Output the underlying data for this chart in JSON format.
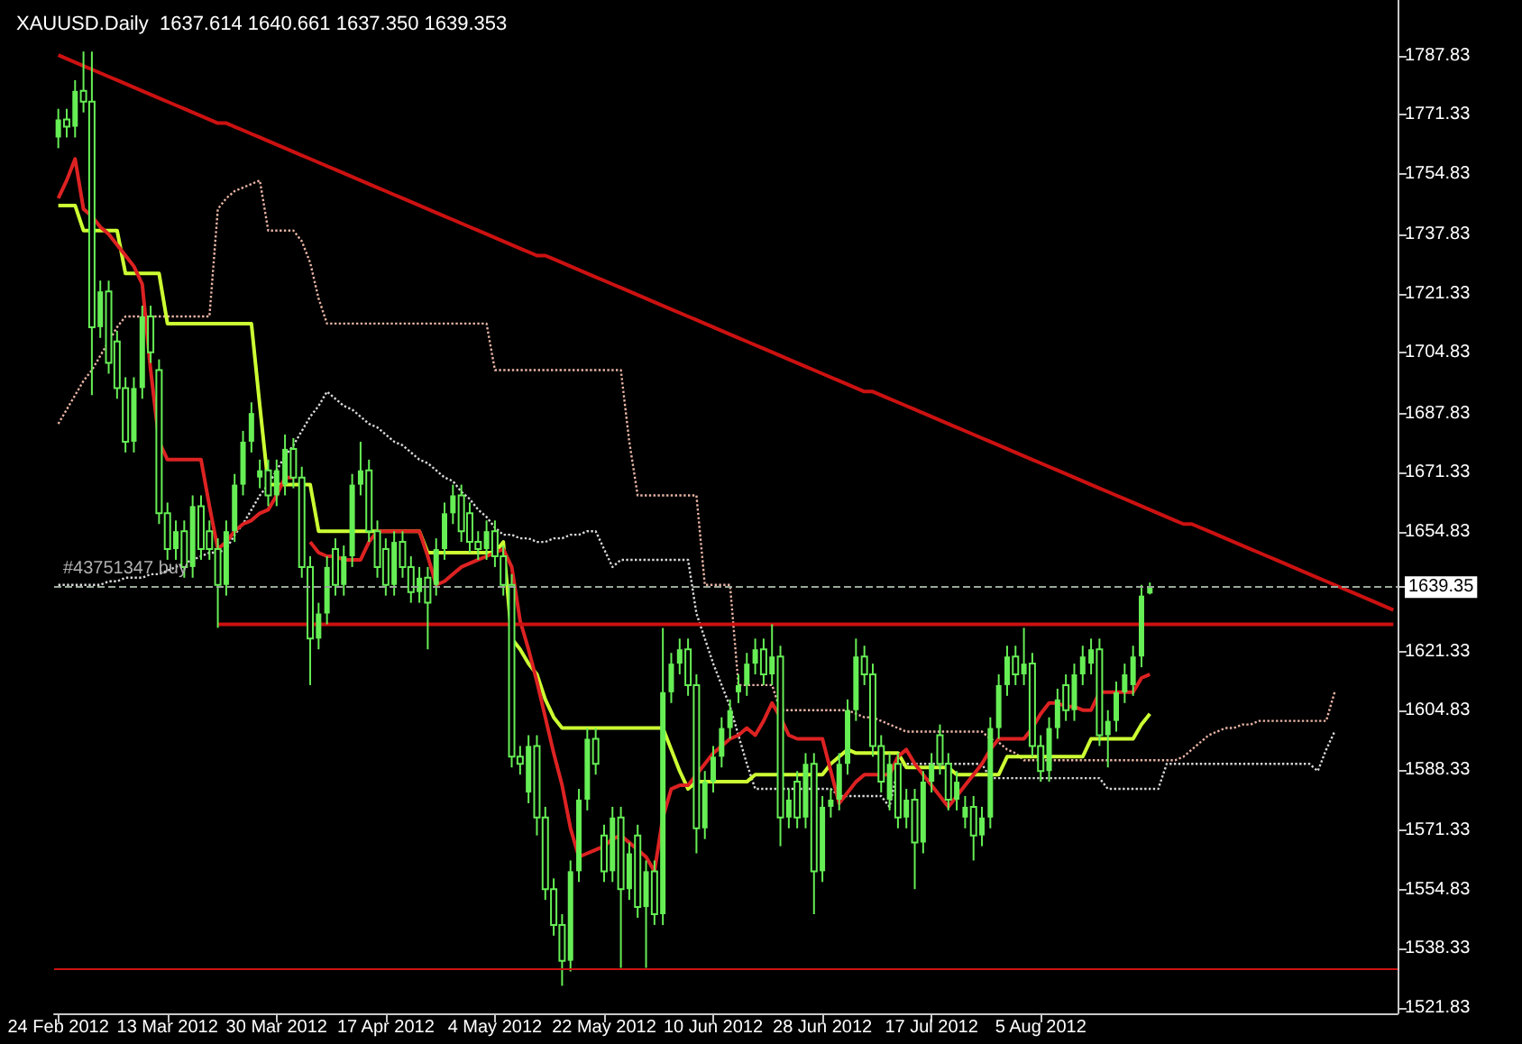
{
  "chart_data": {
    "type": "candlestick",
    "title": "XAUUSD.Daily  1637.614 1640.661 1637.350 1639.353",
    "color": "#66ee55",
    "categories": [
      "24 Feb 2012",
      null,
      null,
      null,
      null,
      null,
      null,
      null,
      null,
      null,
      null,
      null,
      null,
      "13 Mar 2012",
      null,
      null,
      null,
      null,
      null,
      null,
      null,
      null,
      null,
      null,
      null,
      null,
      "30 Mar 2012",
      null,
      null,
      null,
      null,
      null,
      null,
      null,
      null,
      null,
      null,
      null,
      null,
      "17 Apr 2012",
      null,
      null,
      null,
      null,
      null,
      null,
      null,
      null,
      null,
      null,
      null,
      null,
      "4 May 2012",
      null,
      null,
      null,
      null,
      null,
      null,
      null,
      null,
      null,
      null,
      null,
      null,
      "22 May 2012",
      null,
      null,
      null,
      null,
      null,
      null,
      null,
      null,
      null,
      null,
      null,
      null,
      "10 Jun 2012",
      null,
      null,
      null,
      null,
      null,
      null,
      null,
      null,
      null,
      null,
      null,
      null,
      "28 Jun 2012",
      null,
      null,
      null,
      null,
      null,
      null,
      null,
      null,
      null,
      null,
      null,
      null,
      "17 Jul 2012",
      null,
      null,
      null,
      null,
      null,
      null,
      null,
      null,
      null,
      null,
      null,
      null,
      "5 Aug 2012",
      null,
      null,
      null,
      null,
      null,
      null,
      null,
      null,
      null,
      null,
      null,
      null,
      null,
      null,
      null,
      null,
      null,
      null,
      null,
      null,
      null,
      null,
      null,
      null,
      null,
      null,
      null,
      null,
      null,
      null,
      null,
      null,
      null,
      null,
      null,
      null,
      null,
      null,
      null,
      null,
      null,
      null
    ],
    "ohlc": [
      [
        1765,
        1773,
        1762,
        1770
      ],
      [
        1770,
        1773,
        1765,
        1768
      ],
      [
        1768,
        1781,
        1765,
        1778
      ],
      [
        1778,
        1789,
        1772,
        1775
      ],
      [
        1775,
        1789,
        1693,
        1712
      ],
      [
        1712,
        1725,
        1709,
        1722
      ],
      [
        1722,
        1725,
        1699,
        1702
      ],
      [
        1708,
        1711,
        1692,
        1695
      ],
      [
        1695,
        1698,
        1677,
        1680
      ],
      [
        1680,
        1698,
        1677,
        1695
      ],
      [
        1695,
        1718,
        1692,
        1715
      ],
      [
        1715,
        1718,
        1702,
        1705
      ],
      [
        1700,
        1703,
        1657,
        1660
      ],
      [
        1660,
        1663,
        1647,
        1650
      ],
      [
        1650,
        1658,
        1647,
        1655
      ],
      [
        1655,
        1658,
        1642,
        1645
      ],
      [
        1645,
        1665,
        1642,
        1662
      ],
      [
        1662,
        1665,
        1647,
        1650
      ],
      [
        1655,
        1658,
        1647,
        1650
      ],
      [
        1650,
        1653,
        1628,
        1640
      ],
      [
        1640,
        1658,
        1637,
        1655
      ],
      [
        1655,
        1671,
        1652,
        1668
      ],
      [
        1668,
        1683,
        1665,
        1680
      ],
      [
        1680,
        1691,
        1677,
        1688
      ],
      [
        1670,
        1675,
        1667,
        1672
      ],
      [
        1672,
        1675,
        1662,
        1665
      ],
      [
        1665,
        1675,
        1662,
        1672
      ],
      [
        1668,
        1682,
        1665,
        1678
      ],
      [
        1678,
        1681,
        1667,
        1670
      ],
      [
        1670,
        1673,
        1642,
        1645
      ],
      [
        1645,
        1648,
        1612,
        1625
      ],
      [
        1625,
        1635,
        1622,
        1632
      ],
      [
        1632,
        1648,
        1629,
        1645
      ],
      [
        1650,
        1653,
        1637,
        1640
      ],
      [
        1640,
        1651,
        1637,
        1648
      ],
      [
        1648,
        1671,
        1645,
        1668
      ],
      [
        1668,
        1680,
        1665,
        1672
      ],
      [
        1672,
        1675,
        1652,
        1655
      ],
      [
        1655,
        1658,
        1642,
        1645
      ],
      [
        1650,
        1653,
        1637,
        1640
      ],
      [
        1640,
        1655,
        1637,
        1652
      ],
      [
        1652,
        1655,
        1642,
        1645
      ],
      [
        1645,
        1648,
        1635,
        1638
      ],
      [
        1638,
        1645,
        1635,
        1642
      ],
      [
        1642,
        1645,
        1622,
        1635
      ],
      [
        1640,
        1653,
        1637,
        1650
      ],
      [
        1650,
        1663,
        1647,
        1660
      ],
      [
        1660,
        1668,
        1657,
        1665
      ],
      [
        1665,
        1668,
        1652,
        1655
      ],
      [
        1660,
        1663,
        1649,
        1652
      ],
      [
        1652,
        1655,
        1647,
        1650
      ],
      [
        1650,
        1658,
        1647,
        1655
      ],
      [
        1655,
        1658,
        1645,
        1648
      ],
      [
        1648,
        1651,
        1637,
        1640
      ],
      [
        1640,
        1643,
        1589,
        1592
      ],
      [
        1592,
        1595,
        1587,
        1590
      ],
      [
        1582,
        1598,
        1579,
        1595
      ],
      [
        1595,
        1598,
        1570,
        1575
      ],
      [
        1575,
        1578,
        1552,
        1555
      ],
      [
        1555,
        1558,
        1542,
        1545
      ],
      [
        1545,
        1548,
        1528,
        1535
      ],
      [
        1535,
        1563,
        1532,
        1560
      ],
      [
        1560,
        1583,
        1557,
        1580
      ],
      [
        1580,
        1600,
        1577,
        1597
      ],
      [
        1597,
        1600,
        1587,
        1590
      ],
      [
        1570,
        1573,
        1557,
        1560
      ],
      [
        1560,
        1578,
        1557,
        1575
      ],
      [
        1575,
        1578,
        1533,
        1555
      ],
      [
        1555,
        1568,
        1552,
        1565
      ],
      [
        1570,
        1573,
        1547,
        1550
      ],
      [
        1550,
        1563,
        1533,
        1560
      ],
      [
        1560,
        1563,
        1545,
        1548
      ],
      [
        1548,
        1628,
        1545,
        1610
      ],
      [
        1610,
        1621,
        1607,
        1618
      ],
      [
        1618,
        1625,
        1615,
        1622
      ],
      [
        1622,
        1625,
        1609,
        1612
      ],
      [
        1612,
        1615,
        1565,
        1572
      ],
      [
        1572,
        1588,
        1569,
        1585
      ],
      [
        1585,
        1595,
        1582,
        1592
      ],
      [
        1592,
        1603,
        1589,
        1600
      ],
      [
        1600,
        1608,
        1597,
        1605
      ],
      [
        1610,
        1615,
        1607,
        1612
      ],
      [
        1612,
        1621,
        1609,
        1618
      ],
      [
        1618,
        1625,
        1615,
        1622
      ],
      [
        1622,
        1625,
        1612,
        1615
      ],
      [
        1615,
        1629,
        1612,
        1620
      ],
      [
        1620,
        1623,
        1567,
        1575
      ],
      [
        1575,
        1583,
        1572,
        1580
      ],
      [
        1585,
        1588,
        1572,
        1575
      ],
      [
        1575,
        1593,
        1572,
        1590
      ],
      [
        1590,
        1593,
        1548,
        1560
      ],
      [
        1560,
        1581,
        1557,
        1578
      ],
      [
        1578,
        1583,
        1575,
        1580
      ],
      [
        1580,
        1593,
        1577,
        1590
      ],
      [
        1590,
        1608,
        1587,
        1605
      ],
      [
        1605,
        1625,
        1602,
        1620
      ],
      [
        1620,
        1623,
        1612,
        1615
      ],
      [
        1615,
        1618,
        1592,
        1595
      ],
      [
        1595,
        1598,
        1582,
        1585
      ],
      [
        1580,
        1593,
        1577,
        1590
      ],
      [
        1590,
        1593,
        1572,
        1575
      ],
      [
        1575,
        1583,
        1572,
        1580
      ],
      [
        1580,
        1583,
        1555,
        1568
      ],
      [
        1568,
        1588,
        1565,
        1585
      ],
      [
        1585,
        1593,
        1582,
        1590
      ],
      [
        1598,
        1601,
        1587,
        1590
      ],
      [
        1590,
        1593,
        1577,
        1580
      ],
      [
        1580,
        1588,
        1577,
        1585
      ],
      [
        1575,
        1581,
        1572,
        1578
      ],
      [
        1578,
        1581,
        1563,
        1570
      ],
      [
        1570,
        1578,
        1567,
        1575
      ],
      [
        1575,
        1603,
        1572,
        1600
      ],
      [
        1600,
        1615,
        1597,
        1612
      ],
      [
        1612,
        1623,
        1609,
        1620
      ],
      [
        1620,
        1623,
        1612,
        1615
      ],
      [
        1615,
        1628,
        1612,
        1618
      ],
      [
        1618,
        1621,
        1592,
        1595
      ],
      [
        1595,
        1598,
        1585,
        1588
      ],
      [
        1588,
        1603,
        1585,
        1600
      ],
      [
        1600,
        1611,
        1597,
        1608
      ],
      [
        1612,
        1615,
        1602,
        1605
      ],
      [
        1605,
        1618,
        1602,
        1615
      ],
      [
        1615,
        1623,
        1612,
        1620
      ],
      [
        1618,
        1625,
        1615,
        1622
      ],
      [
        1622,
        1625,
        1595,
        1598
      ],
      [
        1598,
        1605,
        1589,
        1602
      ],
      [
        1602,
        1613,
        1599,
        1610
      ],
      [
        1610,
        1618,
        1607,
        1615
      ],
      [
        1612,
        1623,
        1609,
        1620
      ],
      [
        1620,
        1640,
        1617,
        1637
      ],
      [
        1637.614,
        1640.661,
        1637.35,
        1639.353
      ],
      null,
      null,
      null,
      null,
      null,
      null,
      null,
      null,
      null,
      null,
      null,
      null,
      null,
      null,
      null,
      null,
      null,
      null,
      null,
      null,
      null,
      null,
      null,
      null,
      null,
      null,
      null,
      null,
      null
    ],
    "series": [
      {
        "type": "line",
        "color": "#e8b4a4",
        "line_style": "dotted",
        "values": [
          1685,
          1689,
          1693,
          1697,
          1700,
          1704,
          1708,
          1712,
          1715,
          1715,
          1715,
          1715,
          1715,
          1715,
          1715,
          1715,
          1715,
          1715,
          1715,
          1745,
          1748,
          1750,
          1751,
          1752,
          1753,
          1739,
          1739,
          1739,
          1739,
          1736,
          1730,
          1720,
          1713,
          1713,
          1713,
          1713,
          1713,
          1713,
          1713,
          1713,
          1713,
          1713,
          1713,
          1713,
          1713,
          1713,
          1713,
          1713,
          1713,
          1713,
          1713,
          1713,
          1700,
          1700,
          1700,
          1700,
          1700,
          1700,
          1700,
          1700,
          1700,
          1700,
          1700,
          1700,
          1700,
          1700,
          1700,
          1700,
          1680,
          1665,
          1665,
          1665,
          1665,
          1665,
          1665,
          1665,
          1665,
          1640,
          1640,
          1640,
          1640,
          1612,
          1612,
          1612,
          1612,
          1612,
          1605,
          1605,
          1605,
          1605,
          1605,
          1605,
          1605,
          1605,
          1605,
          1604,
          1603,
          1603,
          1602,
          1601,
          1600,
          1599,
          1599,
          1599,
          1599,
          1599,
          1599,
          1599,
          1599,
          1599,
          1599,
          1597,
          1596,
          1594,
          1593,
          1591,
          1591,
          1591,
          1591,
          1591,
          1591,
          1591,
          1591,
          1591,
          1591,
          1591,
          1591,
          1591,
          1591,
          1591,
          1591,
          1591,
          1591,
          1591,
          1592,
          1594,
          1596,
          1598,
          1599,
          1600,
          1600,
          1601,
          1601,
          1602,
          1602,
          1602,
          1602,
          1602,
          1602,
          1602,
          1602,
          1602,
          1610,
          null,
          null,
          null,
          null,
          null,
          null,
          null
        ]
      },
      {
        "type": "line",
        "color": "#d8d8d8",
        "line_style": "dotted",
        "values": [
          1640,
          1640,
          1640,
          1640,
          1640,
          1640,
          1641,
          1641,
          1642,
          1642,
          1642,
          1643,
          1643,
          1644,
          1645,
          1646,
          1647,
          1648,
          1649,
          1649,
          1650,
          1654,
          1657,
          1661,
          1665,
          1668,
          1672,
          1676,
          1679,
          1683,
          1687,
          1690,
          1694,
          1692,
          1690,
          1689,
          1687,
          1685,
          1684,
          1682,
          1680,
          1679,
          1677,
          1675,
          1674,
          1672,
          1670,
          1669,
          1666,
          1664,
          1661,
          1659,
          1656,
          1654,
          1654,
          1653,
          1653,
          1652,
          1652,
          1653,
          1653,
          1654,
          1654,
          1655,
          1655,
          1650,
          1645,
          1647,
          1647,
          1647,
          1647,
          1647,
          1647,
          1647,
          1647,
          1647,
          1632,
          1625,
          1618,
          1612,
          1606,
          1598,
          1590,
          1583,
          1583,
          1583,
          1583,
          1583,
          1583,
          1583,
          1583,
          1583,
          1583,
          1581,
          1581,
          1581,
          1581,
          1581,
          1581,
          1578,
          1589,
          1590,
          1590,
          1590,
          1590,
          1590,
          1590,
          1590,
          1590,
          1590,
          1590,
          1586,
          1586,
          1586,
          1586,
          1586,
          1586,
          1586,
          1586,
          1586,
          1586,
          1586,
          1586,
          1586,
          1586,
          1583,
          1583,
          1583,
          1583,
          1583,
          1583,
          1583,
          1590,
          1590,
          1590,
          1590,
          1590,
          1590,
          1590,
          1590,
          1590,
          1590,
          1590,
          1590,
          1590,
          1590,
          1590,
          1590,
          1590,
          1590,
          1588,
          1594,
          1599,
          null,
          null,
          null,
          null,
          null,
          null,
          null
        ]
      },
      {
        "type": "line",
        "color": "#ccff33",
        "line_style": "solid",
        "values": [
          1746,
          1746,
          1746,
          1739,
          1739,
          1739,
          1739,
          1739,
          1727,
          1727,
          1727,
          1727,
          1727,
          1713,
          1713,
          1713,
          1713,
          1713,
          1713,
          1713,
          1713,
          1713,
          1713,
          1713,
          1690,
          1668,
          1668,
          1668,
          1668,
          1668,
          1668,
          1655,
          1655,
          1655,
          1655,
          1655,
          1655,
          1655,
          1655,
          1655,
          1655,
          1655,
          1655,
          1655,
          1649,
          1649,
          1649,
          1649,
          1649,
          1649,
          1649,
          1649,
          1649,
          1652,
          1625,
          1622,
          1618,
          1615,
          1608,
          1603,
          1600,
          1600,
          1600,
          1600,
          1600,
          1600,
          1600,
          1600,
          1600,
          1600,
          1600,
          1600,
          1600,
          1594,
          1588,
          1583,
          1585,
          1585,
          1585,
          1585,
          1585,
          1585,
          1585,
          1587,
          1587,
          1587,
          1587,
          1587,
          1587,
          1587,
          1587,
          1587,
          1590,
          1592,
          1594,
          1593,
          1593,
          1593,
          1593,
          1593,
          1593,
          1589,
          1589,
          1589,
          1589,
          1589,
          1589,
          1587,
          1587,
          1587,
          1587,
          1587,
          1587,
          1592,
          1592,
          1592,
          1592,
          1592,
          1592,
          1592,
          1592,
          1592,
          1592,
          1597,
          1597,
          1597,
          1597,
          1597,
          1597,
          1601,
          1604,
          null,
          null,
          null,
          null,
          null,
          null,
          null,
          null,
          null,
          null,
          null,
          null,
          null,
          null,
          null,
          null,
          null,
          null,
          null,
          null,
          null,
          null,
          null,
          null,
          null,
          null,
          null,
          null,
          null
        ]
      },
      {
        "type": "line",
        "color": "#dd2222",
        "line_style": "solid",
        "values": [
          1748,
          1753,
          1759,
          1745,
          1743,
          1740,
          1738,
          1735,
          1732,
          1729,
          1724,
          1700,
          1680,
          1675,
          1675,
          1675,
          1675,
          1675,
          1662,
          1650,
          1652,
          1655,
          1657,
          1658,
          1660,
          1661,
          1665,
          1670,
          1670,
          null,
          1652,
          1649,
          1648,
          1648,
          1647,
          1647,
          1647,
          1652,
          1655,
          1655,
          1655,
          1655,
          1655,
          1655,
          1648,
          1640,
          1641,
          1643,
          1645,
          1646,
          1647,
          1648,
          1649,
          1650,
          1645,
          1630,
          1622,
          1613,
          1603,
          1593,
          1584,
          1572,
          1564,
          1565,
          1566,
          1567,
          1569,
          1570,
          1568,
          1566,
          1564,
          1560,
          1575,
          1583,
          1584,
          1584,
          1587,
          1590,
          1593,
          1595,
          1597,
          1598,
          1600,
          1598,
          1602,
          1607,
          1603,
          1598,
          1597,
          1597,
          1597,
          1597,
          1588,
          1579,
          1582,
          1585,
          1587,
          1587,
          1587,
          1587,
          1592,
          1594,
          1590,
          1587,
          1584,
          1581,
          1578,
          1581,
          1584,
          1587,
          1590,
          1594,
          1597,
          1597,
          1597,
          1597,
          1600,
          1604,
          1607,
          1607,
          1606,
          1606,
          1605,
          1605,
          1610,
          1610,
          1610,
          1610,
          1610,
          1614,
          1615,
          null,
          null,
          null,
          null,
          null,
          null,
          null,
          null,
          null,
          null,
          null,
          null,
          null,
          null,
          null,
          null,
          null,
          null,
          null,
          null,
          null,
          null,
          null,
          null,
          null,
          null,
          null,
          null,
          null
        ]
      },
      {
        "type": "line",
        "color": "#cc1111",
        "line_style": "solid",
        "values": [
          1788,
          1787,
          1786,
          1785,
          1784,
          1783,
          1782,
          1781,
          1780,
          1779,
          1778,
          1777,
          1776,
          1775,
          1774,
          1773,
          1772,
          1771,
          1770,
          1769,
          1769,
          1768,
          1767,
          1766,
          1765,
          1764,
          1763,
          1762,
          1761,
          1760,
          1759,
          1758,
          1757,
          1756,
          1755,
          1754,
          1753,
          1752,
          1751,
          1750,
          1749,
          1748,
          1747,
          1746,
          1745,
          1744,
          1743,
          1742,
          1741,
          1740,
          1739,
          1738,
          1737,
          1736,
          1735,
          1734,
          1733,
          1732,
          1732,
          1731,
          1730,
          1729,
          1728,
          1727,
          1726,
          1725,
          1724,
          1723,
          1722,
          1721,
          1720,
          1719,
          1718,
          1717,
          1716,
          1715,
          1714,
          1713,
          1712,
          1711,
          1710,
          1709,
          1708,
          1707,
          1706,
          1705,
          1704,
          1703,
          1702,
          1701,
          1700,
          1699,
          1698,
          1697,
          1696,
          1695,
          1694,
          1694,
          1693,
          1692,
          1691,
          1690,
          1689,
          1688,
          1687,
          1686,
          1685,
          1684,
          1683,
          1682,
          1681,
          1680,
          1679,
          1678,
          1677,
          1676,
          1675,
          1674,
          1673,
          1672,
          1671,
          1670,
          1669,
          1668,
          1667,
          1666,
          1665,
          1664,
          1663,
          1662,
          1661,
          1660,
          1659,
          1658,
          1657,
          1657,
          1656,
          1655,
          1654,
          1653,
          1652,
          1651,
          1650,
          1649,
          1648,
          1647,
          1646,
          1645,
          1644,
          1643,
          1642,
          1641,
          1640,
          1639,
          1638,
          1637,
          1636,
          1635,
          1634,
          1633
        ]
      },
      {
        "type": "line",
        "color": "#cc1111",
        "line_style": "solid",
        "values": [
          null,
          null,
          null,
          null,
          null,
          null,
          null,
          null,
          null,
          null,
          null,
          null,
          null,
          null,
          null,
          null,
          null,
          null,
          null,
          1629,
          1629,
          1629,
          1629,
          1629,
          1629,
          1629,
          1629,
          1629,
          1629,
          1629,
          1629,
          1629,
          1629,
          1629,
          1629,
          1629,
          1629,
          1629,
          1629,
          1629,
          1629,
          1629,
          1629,
          1629,
          1629,
          1629,
          1629,
          1629,
          1629,
          1629,
          1629,
          1629,
          1629,
          1629,
          1629,
          1629,
          1629,
          1629,
          1629,
          1629,
          1629,
          1629,
          1629,
          1629,
          1629,
          1629,
          1629,
          1629,
          1629,
          1629,
          1629,
          1629,
          1629,
          1629,
          1629,
          1629,
          1629,
          1629,
          1629,
          1629,
          1629,
          1629,
          1629,
          1629,
          1629,
          1629,
          1629,
          1629,
          1629,
          1629,
          1629,
          1629,
          1629,
          1629,
          1629,
          1629,
          1629,
          1629,
          1629,
          1629,
          1629,
          1629,
          1629,
          1629,
          1629,
          1629,
          1629,
          1629,
          1629,
          1629,
          1629,
          1629,
          1629,
          1629,
          1629,
          1629,
          1629,
          1629,
          1629,
          1629,
          1629,
          1629,
          1629,
          1629,
          1629,
          1629,
          1629,
          1629,
          1629,
          1629,
          1629,
          1629,
          1629,
          1629,
          1629,
          1629,
          1629,
          1629,
          1629,
          1629,
          1629,
          1629,
          1629,
          1629,
          1629,
          1629,
          1629,
          1629,
          1629,
          1629,
          1629,
          1629,
          1629,
          1629,
          1629,
          1629,
          1629,
          1629,
          1629,
          1629
        ]
      }
    ],
    "ref_lines": [
      {
        "axis": "y",
        "value": 1639.35,
        "label": "#43751347 buy",
        "color": "#9aa89a",
        "line_style": "dashed"
      },
      {
        "axis": "y",
        "value": 1533,
        "color": "#cc1111",
        "line_style": "solid"
      }
    ],
    "ylim": [
      1520.3,
      1803.4
    ],
    "yticks": [
      1787.83,
      1771.33,
      1754.83,
      1737.83,
      1721.33,
      1704.83,
      1687.83,
      1671.33,
      1654.83,
      1639.35,
      1621.33,
      1604.83,
      1588.33,
      1571.33,
      1554.83,
      1538.33,
      1521.83
    ],
    "grid": false
  }
}
